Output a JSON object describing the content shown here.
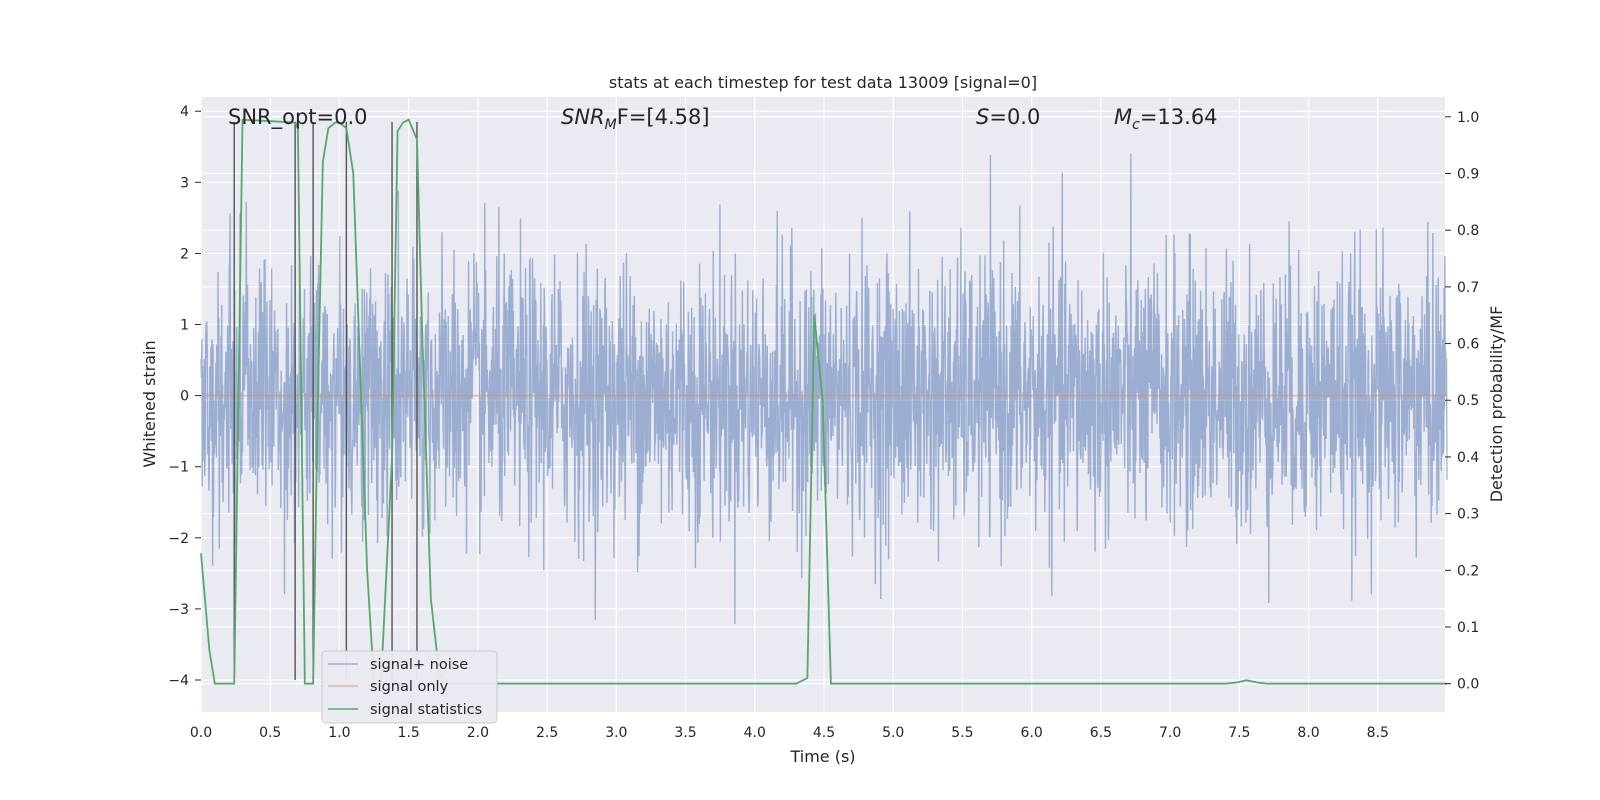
{
  "chart_data": {
    "type": "line",
    "title": "stats at each timestep for test data 13009 [signal=0]",
    "xlabel": "Time (s)",
    "ylabel": "Whitened strain",
    "ylabel_right": "Detection probability/MF",
    "xlim": [
      0,
      9.0
    ],
    "ylim": [
      -4.45,
      4.2
    ],
    "ylim_right": [
      -0.05,
      1.035
    ],
    "x_ticks": [
      "0.0",
      "0.5",
      "1.0",
      "1.5",
      "2.0",
      "2.5",
      "3.0",
      "3.5",
      "4.0",
      "4.5",
      "5.0",
      "5.5",
      "6.0",
      "6.5",
      "7.0",
      "7.5",
      "8.0",
      "8.5"
    ],
    "y_ticks": [
      "4",
      "3",
      "2",
      "1",
      "0",
      "−1",
      "−2",
      "−3",
      "−4"
    ],
    "y_ticks_right": [
      "1.0",
      "0.9",
      "0.8",
      "0.7",
      "0.6",
      "0.5",
      "0.4",
      "0.3",
      "0.2",
      "0.1",
      "0.0"
    ],
    "annotations": [
      {
        "label": "SNR_opt=0.0"
      },
      {
        "base": "SNR",
        "sub": "M",
        "rest": "F=[4.58]"
      },
      {
        "base": "S",
        "rest": "=0.0"
      },
      {
        "base": "M",
        "sub": "c",
        "rest": "=13.64"
      }
    ],
    "legend": [
      {
        "label": "signal+ noise",
        "color": "#4c72b0"
      },
      {
        "label": "signal only",
        "color": "#dd8452"
      },
      {
        "label": "signal statistics",
        "color": "#55a868"
      }
    ],
    "series": [
      {
        "name": "signal+ noise",
        "color": "#4c72b0",
        "description": "whitened strain noise, roughly Gaussian, std ~1, spanning about -4 to 4"
      },
      {
        "name": "signal only",
        "color": "#dd8452",
        "x": [
          0,
          9.0
        ],
        "y": [
          0,
          0
        ]
      },
      {
        "name": "signal statistics",
        "color": "#55a868",
        "axis": "right",
        "x": [
          0,
          0.06,
          0.1,
          0.24,
          0.3,
          0.68,
          0.7,
          0.75,
          0.81,
          0.84,
          0.88,
          0.92,
          0.97,
          1.0,
          1.05,
          1.1,
          1.15,
          1.2,
          1.25,
          1.3,
          1.38,
          1.42,
          1.46,
          1.5,
          1.56,
          1.6,
          1.66,
          1.72,
          1.78,
          4.3,
          4.38,
          4.43,
          4.49,
          4.55,
          4.6,
          4.7,
          7.4,
          7.48,
          7.55,
          7.63,
          7.7,
          9.0
        ],
        "y": [
          0.23,
          0.06,
          0.0,
          0.0,
          0.995,
          0.99,
          0.98,
          0.0,
          0.0,
          0.45,
          0.92,
          0.98,
          0.99,
          0.99,
          0.98,
          0.9,
          0.55,
          0.2,
          0.0,
          0.0,
          0.4,
          0.975,
          0.99,
          0.995,
          0.96,
          0.6,
          0.15,
          0.02,
          0.0,
          0.0,
          0.01,
          0.65,
          0.5,
          0.0,
          0.0,
          0.0,
          0.0,
          0.002,
          0.006,
          0.002,
          0.0,
          0.0
        ]
      },
      {
        "name": "vertical markers",
        "color": "#555555",
        "x": [
          0.24,
          0.68,
          0.81,
          1.05,
          1.38,
          1.56
        ]
      }
    ]
  }
}
